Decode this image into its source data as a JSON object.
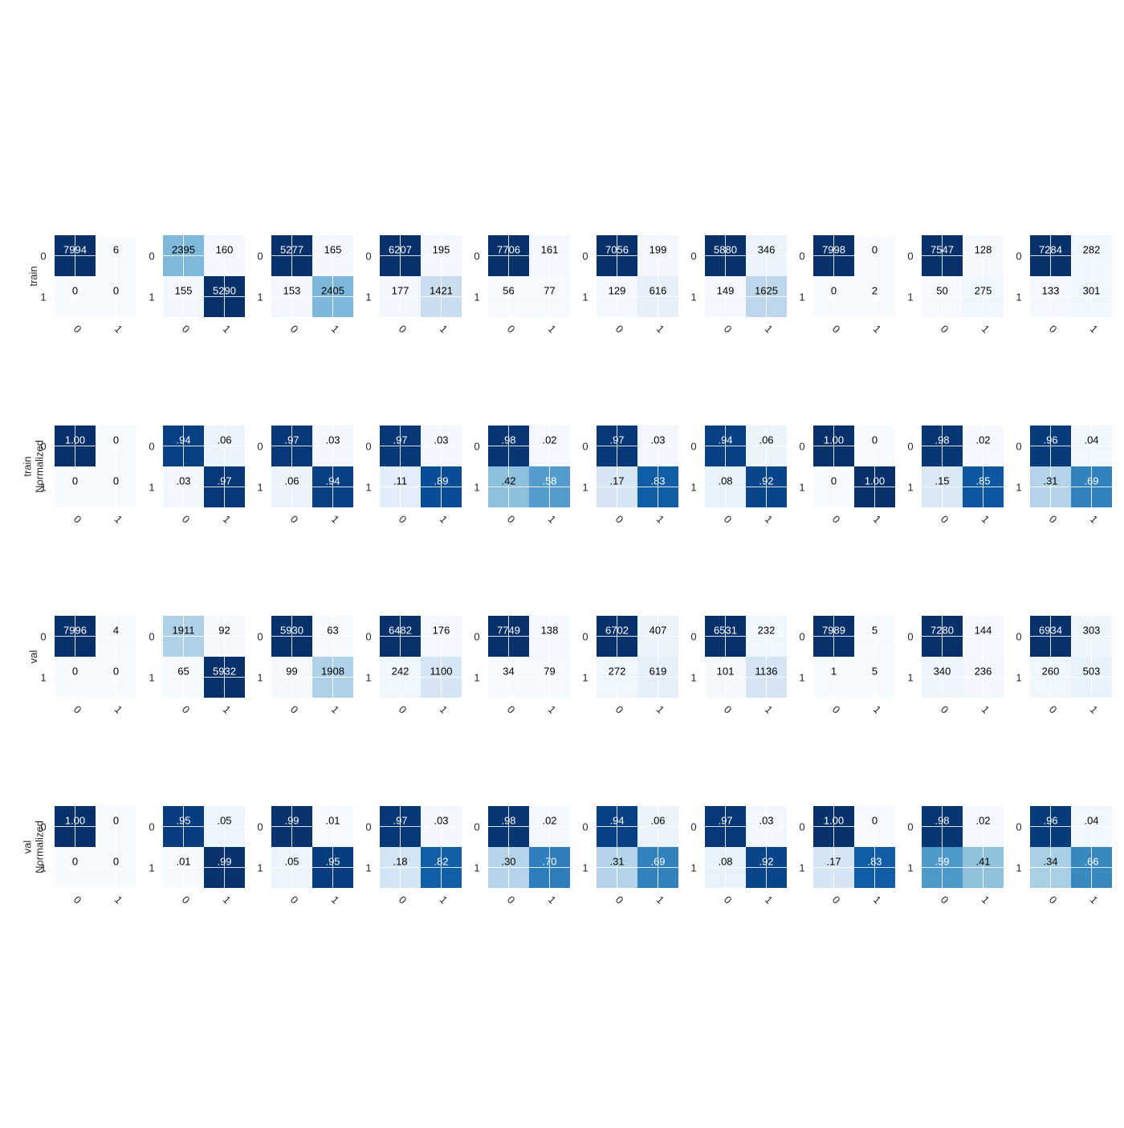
{
  "figure": {
    "colormap": "Blues",
    "colormap_stops": [
      "#f7fbff",
      "#deebf7",
      "#c6dbef",
      "#9ecae1",
      "#6baed6",
      "#4292c6",
      "#2171b5",
      "#08519c",
      "#08306b"
    ],
    "gridline_color": "#ffffff",
    "text_dark": "#000000",
    "text_light": "#ffffff"
  },
  "chart_data": {
    "type": "heatmap",
    "layout": "4 rows x 10 confusion matrices (2x2)",
    "tick_labels": [
      "0",
      "1"
    ],
    "rows": [
      {
        "ylabel": [
          "train"
        ],
        "matrices": [
          {
            "values": [
              [
                7994,
                6
              ],
              [
                0,
                0
              ]
            ],
            "labels": [
              [
                "7994",
                "6"
              ],
              [
                "0",
                "0"
              ]
            ],
            "vmax": 7994
          },
          {
            "values": [
              [
                2395,
                160
              ],
              [
                155,
                5290
              ]
            ],
            "labels": [
              [
                "2395",
                "160"
              ],
              [
                "155",
                "5290"
              ]
            ],
            "vmax": 5290
          },
          {
            "values": [
              [
                5277,
                165
              ],
              [
                153,
                2405
              ]
            ],
            "labels": [
              [
                "5277",
                "165"
              ],
              [
                "153",
                "2405"
              ]
            ],
            "vmax": 5277
          },
          {
            "values": [
              [
                6207,
                195
              ],
              [
                177,
                1421
              ]
            ],
            "labels": [
              [
                "6207",
                "195"
              ],
              [
                "177",
                "1421"
              ]
            ],
            "vmax": 6207
          },
          {
            "values": [
              [
                7706,
                161
              ],
              [
                56,
                77
              ]
            ],
            "labels": [
              [
                "7706",
                "161"
              ],
              [
                "56",
                "77"
              ]
            ],
            "vmax": 7706
          },
          {
            "values": [
              [
                7056,
                199
              ],
              [
                129,
                616
              ]
            ],
            "labels": [
              [
                "7056",
                "199"
              ],
              [
                "129",
                "616"
              ]
            ],
            "vmax": 7056
          },
          {
            "values": [
              [
                5880,
                346
              ],
              [
                149,
                1625
              ]
            ],
            "labels": [
              [
                "5880",
                "346"
              ],
              [
                "149",
                "1625"
              ]
            ],
            "vmax": 5880
          },
          {
            "values": [
              [
                7998,
                0
              ],
              [
                0,
                2
              ]
            ],
            "labels": [
              [
                "7998",
                "0"
              ],
              [
                "0",
                "2"
              ]
            ],
            "vmax": 7998
          },
          {
            "values": [
              [
                7547,
                128
              ],
              [
                50,
                275
              ]
            ],
            "labels": [
              [
                "7547",
                "128"
              ],
              [
                "50",
                "275"
              ]
            ],
            "vmax": 7547
          },
          {
            "values": [
              [
                7284,
                282
              ],
              [
                133,
                301
              ]
            ],
            "labels": [
              [
                "7284",
                "282"
              ],
              [
                "133",
                "301"
              ]
            ],
            "vmax": 7284
          }
        ]
      },
      {
        "ylabel": [
          "train",
          "Normalized"
        ],
        "matrices": [
          {
            "values": [
              [
                1.0,
                0
              ],
              [
                0,
                0
              ]
            ],
            "labels": [
              [
                "1.00",
                "0"
              ],
              [
                "0",
                "0"
              ]
            ],
            "vmax": 1
          },
          {
            "values": [
              [
                0.94,
                0.06
              ],
              [
                0.03,
                0.97
              ]
            ],
            "labels": [
              [
                ".94",
                ".06"
              ],
              [
                ".03",
                ".97"
              ]
            ],
            "vmax": 1
          },
          {
            "values": [
              [
                0.97,
                0.03
              ],
              [
                0.06,
                0.94
              ]
            ],
            "labels": [
              [
                ".97",
                ".03"
              ],
              [
                ".06",
                ".94"
              ]
            ],
            "vmax": 1
          },
          {
            "values": [
              [
                0.97,
                0.03
              ],
              [
                0.11,
                0.89
              ]
            ],
            "labels": [
              [
                ".97",
                ".03"
              ],
              [
                ".11",
                ".89"
              ]
            ],
            "vmax": 1
          },
          {
            "values": [
              [
                0.98,
                0.02
              ],
              [
                0.42,
                0.58
              ]
            ],
            "labels": [
              [
                ".98",
                ".02"
              ],
              [
                ".42",
                ".58"
              ]
            ],
            "vmax": 1
          },
          {
            "values": [
              [
                0.97,
                0.03
              ],
              [
                0.17,
                0.83
              ]
            ],
            "labels": [
              [
                ".97",
                ".03"
              ],
              [
                ".17",
                ".83"
              ]
            ],
            "vmax": 1
          },
          {
            "values": [
              [
                0.94,
                0.06
              ],
              [
                0.08,
                0.92
              ]
            ],
            "labels": [
              [
                ".94",
                ".06"
              ],
              [
                ".08",
                ".92"
              ]
            ],
            "vmax": 1
          },
          {
            "values": [
              [
                1.0,
                0
              ],
              [
                0,
                1.0
              ]
            ],
            "labels": [
              [
                "1.00",
                "0"
              ],
              [
                "0",
                "1.00"
              ]
            ],
            "vmax": 1
          },
          {
            "values": [
              [
                0.98,
                0.02
              ],
              [
                0.15,
                0.85
              ]
            ],
            "labels": [
              [
                ".98",
                ".02"
              ],
              [
                ".15",
                ".85"
              ]
            ],
            "vmax": 1
          },
          {
            "values": [
              [
                0.96,
                0.04
              ],
              [
                0.31,
                0.69
              ]
            ],
            "labels": [
              [
                ".96",
                ".04"
              ],
              [
                ".31",
                ".69"
              ]
            ],
            "vmax": 1
          }
        ]
      },
      {
        "ylabel": [
          "val"
        ],
        "matrices": [
          {
            "values": [
              [
                7996,
                4
              ],
              [
                0,
                0
              ]
            ],
            "labels": [
              [
                "7996",
                "4"
              ],
              [
                "0",
                "0"
              ]
            ],
            "vmax": 7996
          },
          {
            "values": [
              [
                1911,
                92
              ],
              [
                65,
                5932
              ]
            ],
            "labels": [
              [
                "1911",
                "92"
              ],
              [
                "65",
                "5932"
              ]
            ],
            "vmax": 5932
          },
          {
            "values": [
              [
                5930,
                63
              ],
              [
                99,
                1908
              ]
            ],
            "labels": [
              [
                "5930",
                "63"
              ],
              [
                "99",
                "1908"
              ]
            ],
            "vmax": 5930
          },
          {
            "values": [
              [
                6482,
                176
              ],
              [
                242,
                1100
              ]
            ],
            "labels": [
              [
                "6482",
                "176"
              ],
              [
                "242",
                "1100"
              ]
            ],
            "vmax": 6482
          },
          {
            "values": [
              [
                7749,
                138
              ],
              [
                34,
                79
              ]
            ],
            "labels": [
              [
                "7749",
                "138"
              ],
              [
                "34",
                "79"
              ]
            ],
            "vmax": 7749
          },
          {
            "values": [
              [
                6702,
                407
              ],
              [
                272,
                619
              ]
            ],
            "labels": [
              [
                "6702",
                "407"
              ],
              [
                "272",
                "619"
              ]
            ],
            "vmax": 6702
          },
          {
            "values": [
              [
                6531,
                232
              ],
              [
                101,
                1136
              ]
            ],
            "labels": [
              [
                "6531",
                "232"
              ],
              [
                "101",
                "1136"
              ]
            ],
            "vmax": 6531
          },
          {
            "values": [
              [
                7989,
                5
              ],
              [
                1,
                5
              ]
            ],
            "labels": [
              [
                "7989",
                "5"
              ],
              [
                "1",
                "5"
              ]
            ],
            "vmax": 7989
          },
          {
            "values": [
              [
                7280,
                144
              ],
              [
                340,
                236
              ]
            ],
            "labels": [
              [
                "7280",
                "144"
              ],
              [
                "340",
                "236"
              ]
            ],
            "vmax": 7280
          },
          {
            "values": [
              [
                6934,
                303
              ],
              [
                260,
                503
              ]
            ],
            "labels": [
              [
                "6934",
                "303"
              ],
              [
                "260",
                "503"
              ]
            ],
            "vmax": 6934
          }
        ]
      },
      {
        "ylabel": [
          "val",
          "Normalized"
        ],
        "matrices": [
          {
            "values": [
              [
                1.0,
                0
              ],
              [
                0,
                0
              ]
            ],
            "labels": [
              [
                "1.00",
                "0"
              ],
              [
                "0",
                "0"
              ]
            ],
            "vmax": 1
          },
          {
            "values": [
              [
                0.95,
                0.05
              ],
              [
                0.01,
                0.99
              ]
            ],
            "labels": [
              [
                ".95",
                ".05"
              ],
              [
                ".01",
                ".99"
              ]
            ],
            "vmax": 1
          },
          {
            "values": [
              [
                0.99,
                0.01
              ],
              [
                0.05,
                0.95
              ]
            ],
            "labels": [
              [
                ".99",
                ".01"
              ],
              [
                ".05",
                ".95"
              ]
            ],
            "vmax": 1
          },
          {
            "values": [
              [
                0.97,
                0.03
              ],
              [
                0.18,
                0.82
              ]
            ],
            "labels": [
              [
                ".97",
                ".03"
              ],
              [
                ".18",
                ".82"
              ]
            ],
            "vmax": 1
          },
          {
            "values": [
              [
                0.98,
                0.02
              ],
              [
                0.3,
                0.7
              ]
            ],
            "labels": [
              [
                ".98",
                ".02"
              ],
              [
                ".30",
                ".70"
              ]
            ],
            "vmax": 1
          },
          {
            "values": [
              [
                0.94,
                0.06
              ],
              [
                0.31,
                0.69
              ]
            ],
            "labels": [
              [
                ".94",
                ".06"
              ],
              [
                ".31",
                ".69"
              ]
            ],
            "vmax": 1
          },
          {
            "values": [
              [
                0.97,
                0.03
              ],
              [
                0.08,
                0.92
              ]
            ],
            "labels": [
              [
                ".97",
                ".03"
              ],
              [
                ".08",
                ".92"
              ]
            ],
            "vmax": 1
          },
          {
            "values": [
              [
                1.0,
                0
              ],
              [
                0.17,
                0.83
              ]
            ],
            "labels": [
              [
                "1.00",
                "0"
              ],
              [
                ".17",
                ".83"
              ]
            ],
            "vmax": 1
          },
          {
            "values": [
              [
                0.98,
                0.02
              ],
              [
                0.59,
                0.41
              ]
            ],
            "labels": [
              [
                ".98",
                ".02"
              ],
              [
                ".59",
                ".41"
              ]
            ],
            "vmax": 1
          },
          {
            "values": [
              [
                0.96,
                0.04
              ],
              [
                0.34,
                0.66
              ]
            ],
            "labels": [
              [
                ".96",
                ".04"
              ],
              [
                ".34",
                ".66"
              ]
            ],
            "vmax": 1
          }
        ]
      }
    ]
  }
}
